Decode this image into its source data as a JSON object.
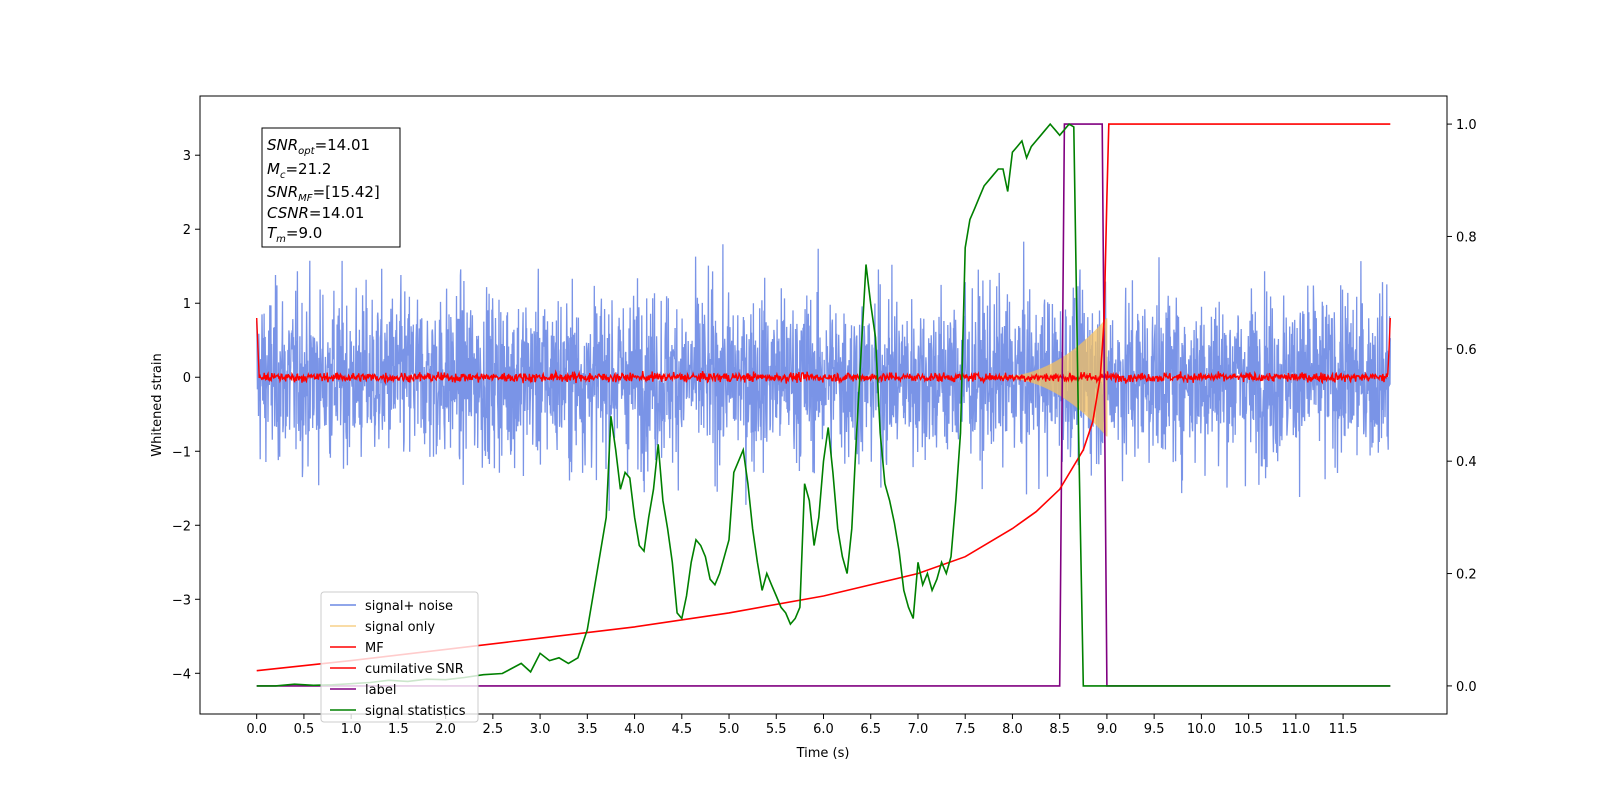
{
  "chart_data": {
    "type": "line",
    "title": "",
    "xlabel": "Time (s)",
    "ylabel": "Whitened strain",
    "xlim": [
      -0.6,
      12.6
    ],
    "ylim": [
      -4.55,
      3.8
    ],
    "y2lim": [
      -0.05,
      1.05
    ],
    "x_ticks": [
      "0.0",
      "0.5",
      "1.0",
      "1.5",
      "2.0",
      "2.5",
      "3.0",
      "3.5",
      "4.0",
      "4.5",
      "5.0",
      "5.5",
      "6.0",
      "6.5",
      "7.0",
      "7.5",
      "8.0",
      "8.5",
      "9.0",
      "9.5",
      "10.0",
      "10.5",
      "11.0",
      "11.5"
    ],
    "y_ticks": [
      "3",
      "2",
      "1",
      "0",
      "−1",
      "−2",
      "−3",
      "−4"
    ],
    "y2_ticks": [
      "1.0",
      "0.8",
      "0.6",
      "0.4",
      "0.2",
      "0.0"
    ],
    "grid": false,
    "legend_position": "lower-left",
    "series": [
      {
        "name": "signal+ noise",
        "color": "#6b88e4",
        "axis": "left",
        "style": "noise",
        "amplitude": 1.3,
        "x_range": [
          0,
          12.0
        ]
      },
      {
        "name": "signal only",
        "color": "#f4c060",
        "axis": "left",
        "style": "chirp",
        "x_range": [
          7.8,
          9.0
        ],
        "peak_amplitude": 0.8
      },
      {
        "name": "MF",
        "color": "#ff0000",
        "axis": "left",
        "style": "mf",
        "amplitude": 0.08,
        "x_range": [
          0,
          12.0
        ]
      },
      {
        "name": "cumilative SNR",
        "color": "#ff0000",
        "axis": "right",
        "x": [
          0,
          1,
          2,
          3,
          4,
          5,
          6,
          7,
          7.5,
          8,
          8.25,
          8.5,
          8.75,
          8.85,
          8.93,
          8.97,
          9.0,
          9.02,
          12.0
        ],
        "values": [
          0.027,
          0.045,
          0.065,
          0.085,
          0.105,
          0.13,
          0.16,
          0.2,
          0.23,
          0.28,
          0.31,
          0.35,
          0.42,
          0.47,
          0.55,
          0.65,
          0.87,
          1.0,
          1.0
        ]
      },
      {
        "name": "label",
        "color": "#800080",
        "axis": "right",
        "x": [
          0,
          8.5,
          8.55,
          8.95,
          9.0,
          12.0
        ],
        "values": [
          0,
          0,
          1,
          1,
          0,
          0
        ]
      },
      {
        "name": "signal statistics",
        "color": "#008000",
        "axis": "right",
        "x": [
          0,
          0.2,
          0.4,
          0.6,
          0.8,
          1.0,
          1.2,
          1.4,
          1.6,
          1.8,
          2.0,
          2.2,
          2.4,
          2.6,
          2.8,
          2.9,
          3.0,
          3.1,
          3.2,
          3.3,
          3.4,
          3.5,
          3.6,
          3.7,
          3.75,
          3.8,
          3.85,
          3.9,
          3.95,
          4.0,
          4.05,
          4.1,
          4.15,
          4.2,
          4.25,
          4.3,
          4.35,
          4.4,
          4.45,
          4.5,
          4.55,
          4.6,
          4.65,
          4.7,
          4.75,
          4.8,
          4.85,
          4.9,
          4.95,
          5.0,
          5.05,
          5.1,
          5.15,
          5.2,
          5.25,
          5.3,
          5.35,
          5.4,
          5.45,
          5.5,
          5.55,
          5.6,
          5.65,
          5.7,
          5.75,
          5.8,
          5.85,
          5.9,
          5.95,
          6.0,
          6.05,
          6.1,
          6.15,
          6.2,
          6.25,
          6.3,
          6.35,
          6.4,
          6.45,
          6.5,
          6.55,
          6.6,
          6.65,
          6.7,
          6.75,
          6.8,
          6.85,
          6.9,
          6.95,
          7.0,
          7.05,
          7.1,
          7.15,
          7.2,
          7.25,
          7.3,
          7.35,
          7.4,
          7.45,
          7.5,
          7.55,
          7.6,
          7.65,
          7.7,
          7.75,
          7.8,
          7.85,
          7.9,
          7.95,
          8.0,
          8.05,
          8.1,
          8.15,
          8.2,
          8.25,
          8.3,
          8.35,
          8.4,
          8.45,
          8.5,
          8.55,
          8.6,
          8.65,
          8.7,
          8.75,
          8.8,
          8.85,
          8.9,
          8.95,
          9.0,
          9.05,
          9.1,
          9.2,
          12.0
        ],
        "values": [
          0,
          0,
          0.003,
          0.001,
          0.002,
          0.004,
          0.006,
          0.01,
          0.008,
          0.012,
          0.011,
          0.015,
          0.02,
          0.022,
          0.04,
          0.025,
          0.058,
          0.045,
          0.05,
          0.04,
          0.05,
          0.1,
          0.2,
          0.3,
          0.48,
          0.42,
          0.35,
          0.38,
          0.37,
          0.3,
          0.25,
          0.24,
          0.3,
          0.35,
          0.43,
          0.33,
          0.28,
          0.22,
          0.13,
          0.12,
          0.16,
          0.22,
          0.26,
          0.25,
          0.23,
          0.19,
          0.18,
          0.2,
          0.23,
          0.26,
          0.38,
          0.4,
          0.42,
          0.36,
          0.28,
          0.22,
          0.17,
          0.2,
          0.18,
          0.16,
          0.14,
          0.13,
          0.11,
          0.12,
          0.14,
          0.36,
          0.33,
          0.25,
          0.3,
          0.4,
          0.46,
          0.38,
          0.28,
          0.23,
          0.2,
          0.28,
          0.45,
          0.6,
          0.75,
          0.68,
          0.62,
          0.45,
          0.36,
          0.33,
          0.29,
          0.24,
          0.17,
          0.14,
          0.12,
          0.22,
          0.18,
          0.2,
          0.17,
          0.19,
          0.22,
          0.2,
          0.23,
          0.33,
          0.45,
          0.78,
          0.83,
          0.85,
          0.87,
          0.89,
          0.9,
          0.91,
          0.92,
          0.92,
          0.88,
          0.95,
          0.96,
          0.97,
          0.94,
          0.96,
          0.97,
          0.98,
          0.99,
          1.0,
          0.99,
          0.98,
          0.99,
          1.0,
          0.995,
          0.45,
          0.0,
          0.0,
          0.0,
          0.0,
          0.0,
          0.0,
          0.0,
          0.0,
          0.0,
          0.0
        ]
      }
    ]
  },
  "info_box": {
    "snr_opt": {
      "name": "SNR",
      "sub": "opt",
      "value": "=14.01"
    },
    "mc": {
      "name": "M",
      "sub": "c",
      "value": "=21.2"
    },
    "snr_mf": {
      "name": "SNR",
      "sub": "MF",
      "value": "=[15.42]"
    },
    "csnr": {
      "name": "CSNR",
      "value": "=14.01"
    },
    "tm": {
      "name": "T",
      "sub": "m",
      "value": "=9.0"
    }
  }
}
